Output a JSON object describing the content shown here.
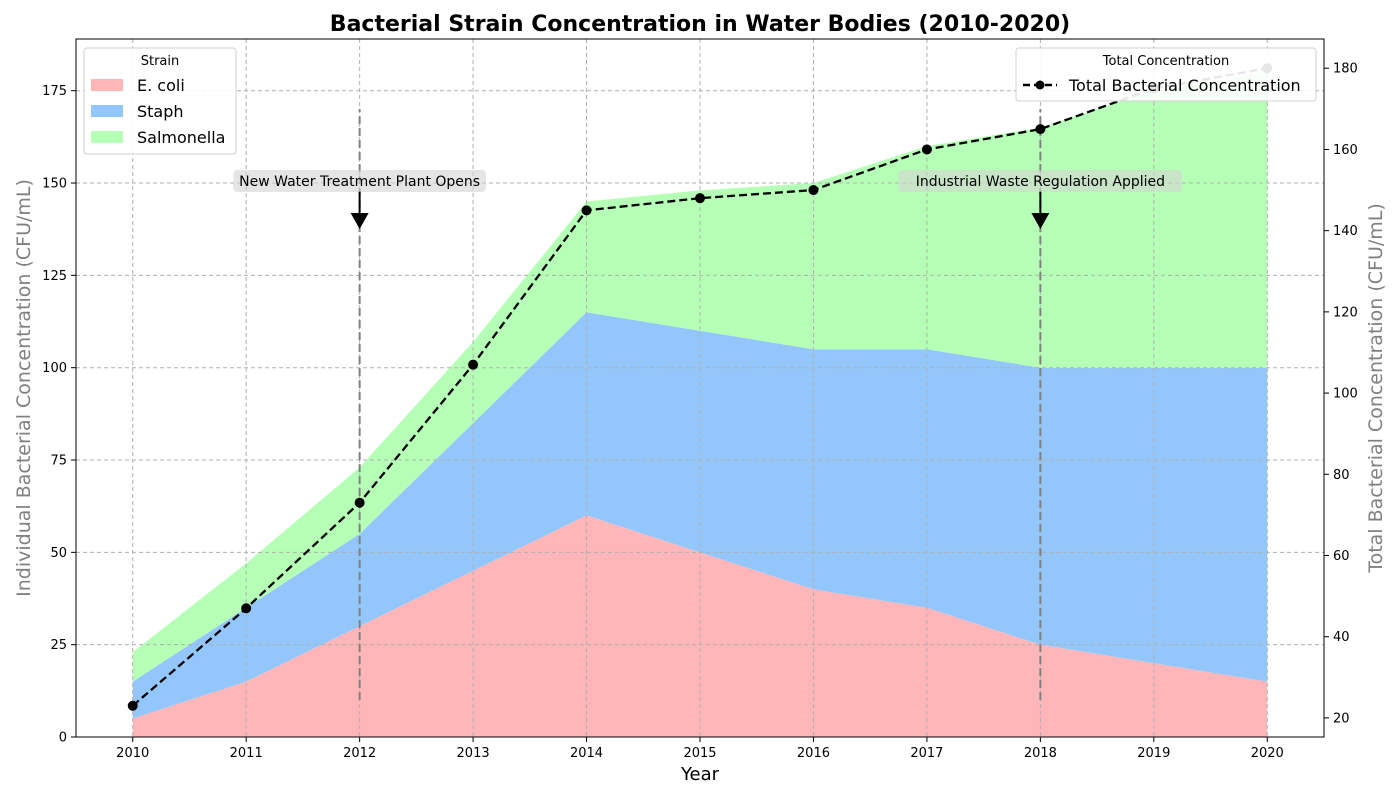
{
  "chart_data": {
    "type": "area",
    "title": "Bacterial Strain Concentration in Water Bodies (2010-2020)",
    "xlabel": "Year",
    "ylabel": "Individual Bacterial Concentration (CFU/mL)",
    "y2label": "Total Bacterial Concentration (CFU/mL)",
    "stacked": true,
    "grid": true,
    "x": [
      2010,
      2011,
      2012,
      2013,
      2014,
      2015,
      2016,
      2017,
      2018,
      2019,
      2020
    ],
    "xlim": [
      2009.5,
      2020.5
    ],
    "ylim": [
      0,
      189
    ],
    "y2lim": [
      15.3,
      187.2
    ],
    "yticks": [
      0,
      25,
      50,
      75,
      100,
      125,
      150,
      175
    ],
    "y2ticks": [
      20,
      40,
      60,
      80,
      100,
      120,
      140,
      160,
      180
    ],
    "series": [
      {
        "name": "E. coli",
        "color": "#ffb6b9",
        "values": [
          5,
          15,
          30,
          45,
          60,
          50,
          40,
          35,
          25,
          20,
          15
        ]
      },
      {
        "name": "Staph",
        "color": "#93c7fc",
        "values": [
          10,
          20,
          25,
          40,
          55,
          60,
          65,
          70,
          75,
          80,
          85
        ]
      },
      {
        "name": "Salmonella",
        "color": "#b6ffb6",
        "values": [
          8,
          12,
          18,
          22,
          30,
          38,
          45,
          55,
          65,
          75,
          80
        ]
      }
    ],
    "total": {
      "name": "Total Bacterial Concentration",
      "color": "#000000",
      "axis": "right",
      "values": [
        23,
        47,
        73,
        107,
        145,
        148,
        150,
        160,
        165,
        175,
        180
      ]
    },
    "legend": {
      "title": "Strain",
      "placement": "top-left"
    },
    "legend_total": {
      "title": "Total Concentration",
      "placement": "top-right"
    },
    "annotations": [
      {
        "text": "New Water Treatment Plant Opens",
        "x": 2012,
        "y": 140,
        "text_y": 150,
        "vline": [
          10,
          170
        ]
      },
      {
        "text": "Industrial Waste Regulation Applied",
        "x": 2018,
        "y": 140,
        "text_y": 150,
        "vline": [
          10,
          170
        ]
      }
    ]
  }
}
